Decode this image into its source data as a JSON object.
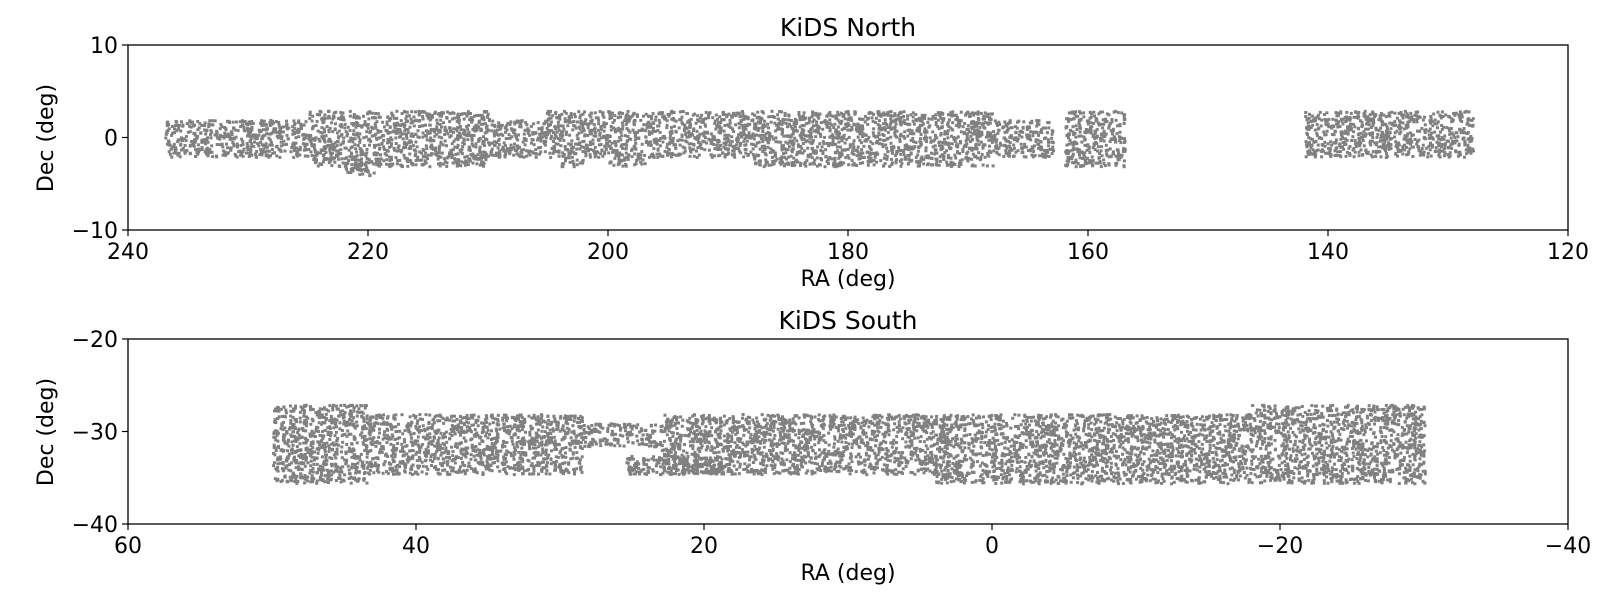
{
  "chart_data": [
    {
      "type": "scatter",
      "title": "KiDS North",
      "xlabel": "RA (deg)",
      "ylabel": "Dec (deg)",
      "xlim": [
        240,
        120
      ],
      "ylim": [
        -10,
        10
      ],
      "xticks": [
        240,
        220,
        200,
        180,
        160,
        140,
        120
      ],
      "xtick_labels": [
        "240",
        "220",
        "200",
        "180",
        "160",
        "140",
        "120"
      ],
      "yticks": [
        -10,
        0,
        10
      ],
      "ytick_labels": [
        "−10",
        "0",
        "10"
      ],
      "grid": false,
      "point_color": "#808080",
      "footprint_regions": [
        {
          "ra": [
            237.0,
            225.0
          ],
          "dec": [
            -2.0,
            2.0
          ]
        },
        {
          "ra": [
            225.0,
            210.0
          ],
          "dec": [
            -3.0,
            3.0
          ]
        },
        {
          "ra": [
            222.0,
            219.0
          ],
          "dec": [
            -4.0,
            -2.5
          ]
        },
        {
          "ra": [
            210.0,
            205.5
          ],
          "dec": [
            -2.0,
            2.0
          ]
        },
        {
          "ra": [
            205.5,
            188.0
          ],
          "dec": [
            -2.0,
            3.0
          ]
        },
        {
          "ra": [
            204.0,
            202.0
          ],
          "dec": [
            -3.0,
            -2.0
          ]
        },
        {
          "ra": [
            200.0,
            197.0
          ],
          "dec": [
            -3.0,
            -2.0
          ]
        },
        {
          "ra": [
            188.0,
            168.0
          ],
          "dec": [
            -3.0,
            3.0
          ]
        },
        {
          "ra": [
            168.0,
            163.0
          ],
          "dec": [
            -2.0,
            2.0
          ]
        },
        {
          "ra": [
            162.0,
            157.0
          ],
          "dec": [
            -3.0,
            3.0
          ]
        },
        {
          "ra": [
            142.0,
            128.0
          ],
          "dec": [
            -2.0,
            3.0
          ]
        }
      ]
    },
    {
      "type": "scatter",
      "title": "KiDS South",
      "xlabel": "RA (deg)",
      "ylabel": "Dec (deg)",
      "xlim": [
        60,
        -40
      ],
      "ylim": [
        -40,
        -20
      ],
      "xticks": [
        60,
        40,
        20,
        0,
        -20,
        -40
      ],
      "xtick_labels": [
        "60",
        "40",
        "20",
        "0",
        "−20",
        "−40"
      ],
      "yticks": [
        -40,
        -30,
        -20
      ],
      "ytick_labels": [
        "−40",
        "−30",
        "−20"
      ],
      "grid": false,
      "point_color": "#808080",
      "footprint_regions": [
        {
          "ra": [
            50.0,
            43.5
          ],
          "dec": [
            -35.5,
            -27.0
          ]
        },
        {
          "ra": [
            43.5,
            28.5
          ],
          "dec": [
            -34.5,
            -28.0
          ]
        },
        {
          "ra": [
            28.5,
            23.0
          ],
          "dec": [
            -31.5,
            -29.0
          ]
        },
        {
          "ra": [
            25.5,
            18.0
          ],
          "dec": [
            -34.5,
            -32.5
          ]
        },
        {
          "ra": [
            23.0,
            4.0
          ],
          "dec": [
            -34.5,
            -28.0
          ]
        },
        {
          "ra": [
            4.0,
            -30.0
          ],
          "dec": [
            -35.5,
            -28.0
          ]
        },
        {
          "ra": [
            -18.0,
            -30.0
          ],
          "dec": [
            -28.0,
            -27.0
          ]
        }
      ]
    }
  ]
}
